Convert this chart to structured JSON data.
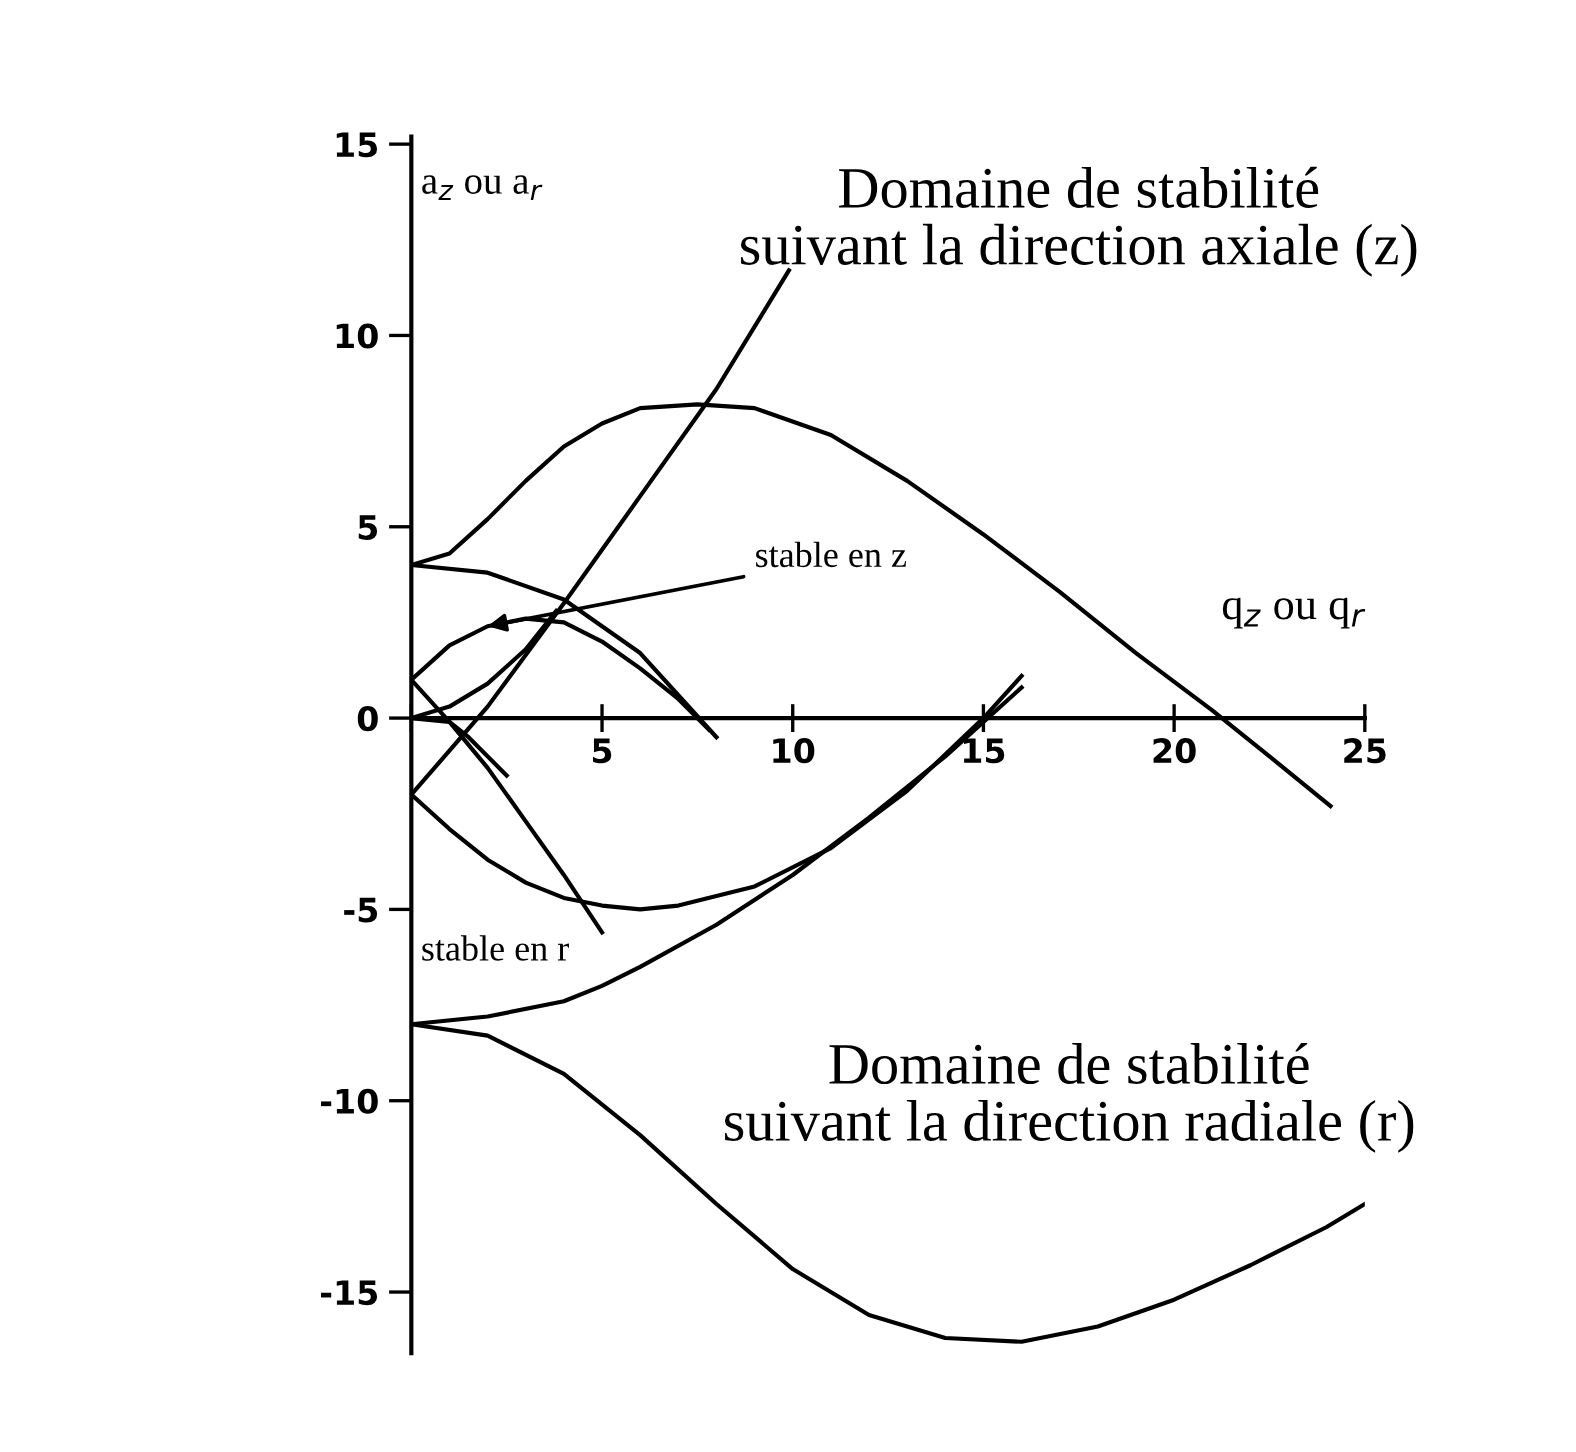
{
  "chart_data": {
    "type": "line",
    "xlabel": "q$_{z}$ ou q$_{r}$",
    "ylabel": "a$_{z}$ ou a$_{r}$",
    "xlim": [
      0,
      25
    ],
    "ylim": [
      -16.6,
      15.2
    ],
    "xticks": [
      {
        "value": 0,
        "label": null
      },
      5,
      10,
      15,
      20,
      25
    ],
    "yticks": [
      -15,
      -10,
      -5,
      0,
      5,
      10,
      15
    ],
    "grid": false,
    "legend": false,
    "marker": "none",
    "line_style": "solid",
    "series": [
      {
        "color": "#000000",
        "x": [
          0,
          1,
          2,
          3,
          4,
          5,
          6,
          7.5,
          9,
          11,
          13,
          15,
          17,
          19,
          21,
          22.5,
          24.1
        ],
        "values": [
          4,
          4.3,
          5.2,
          6.2,
          7.1,
          7.7,
          8.1,
          8.2,
          8.1,
          7.4,
          6.2,
          4.8,
          3.3,
          1.7,
          0.2,
          -1,
          -2.3
        ]
      },
      {
        "color": "#000000",
        "x": [
          0,
          2,
          4,
          6,
          8,
          9.9
        ],
        "values": [
          -2,
          0.3,
          3,
          5.8,
          8.6,
          11.7
        ]
      },
      {
        "color": "#000000",
        "x": [
          0,
          2,
          4,
          6,
          8
        ],
        "values": [
          4,
          3.8,
          3.1,
          1.7,
          -0.5
        ]
      },
      {
        "color": "#000000",
        "x": [
          0,
          1,
          2,
          3,
          4,
          5,
          6,
          7,
          7.8
        ],
        "values": [
          1,
          1.9,
          2.4,
          2.6,
          2.5,
          2,
          1.3,
          0.5,
          -0.3
        ]
      },
      {
        "color": "#000000",
        "x": [
          0,
          1,
          2,
          3,
          3.8
        ],
        "values": [
          0,
          0.3,
          0.9,
          1.8,
          2.8
        ]
      },
      {
        "color": "#000000",
        "x": [
          0,
          1,
          2,
          3,
          4,
          5
        ],
        "values": [
          1,
          -0.1,
          -1.3,
          -2.7,
          -4.1,
          -5.6
        ]
      },
      {
        "color": "#000000",
        "x": [
          0,
          1,
          1.5,
          2.5
        ],
        "values": [
          0,
          -0.1,
          -0.5,
          -1.5
        ]
      },
      {
        "color": "#000000",
        "x": [
          0,
          1,
          2,
          3,
          4,
          5,
          6,
          7,
          9,
          11,
          13,
          15,
          16
        ],
        "values": [
          -2,
          -2.9,
          -3.7,
          -4.3,
          -4.7,
          -4.9,
          -5,
          -4.9,
          -4.4,
          -3.4,
          -1.9,
          0,
          1.1
        ]
      },
      {
        "color": "#000000",
        "x": [
          0,
          2,
          4,
          5,
          6,
          8,
          10,
          12,
          14,
          16
        ],
        "values": [
          -8,
          -7.8,
          -7.4,
          -7,
          -6.5,
          -5.4,
          -4.1,
          -2.6,
          -1,
          0.8
        ]
      },
      {
        "color": "#000000",
        "x": [
          0,
          2,
          4,
          6,
          8,
          10,
          12,
          14,
          16,
          18,
          20,
          22,
          24,
          25
        ],
        "values": [
          -8,
          -8.3,
          -9.3,
          -10.9,
          -12.7,
          -14.4,
          -15.6,
          -16.2,
          -16.3,
          -15.9,
          -15.2,
          -14.3,
          -13.3,
          -12.7
        ]
      }
    ],
    "annotations": [
      "Domaine de stabilité\nsuivant la direction axiale (z)",
      "Domaine de stabilité\nsuivant la direction radiale (r)",
      {
        "text": "stable en z",
        "x": 2,
        "y": 2.4
      },
      "stable en r"
    ]
  }
}
